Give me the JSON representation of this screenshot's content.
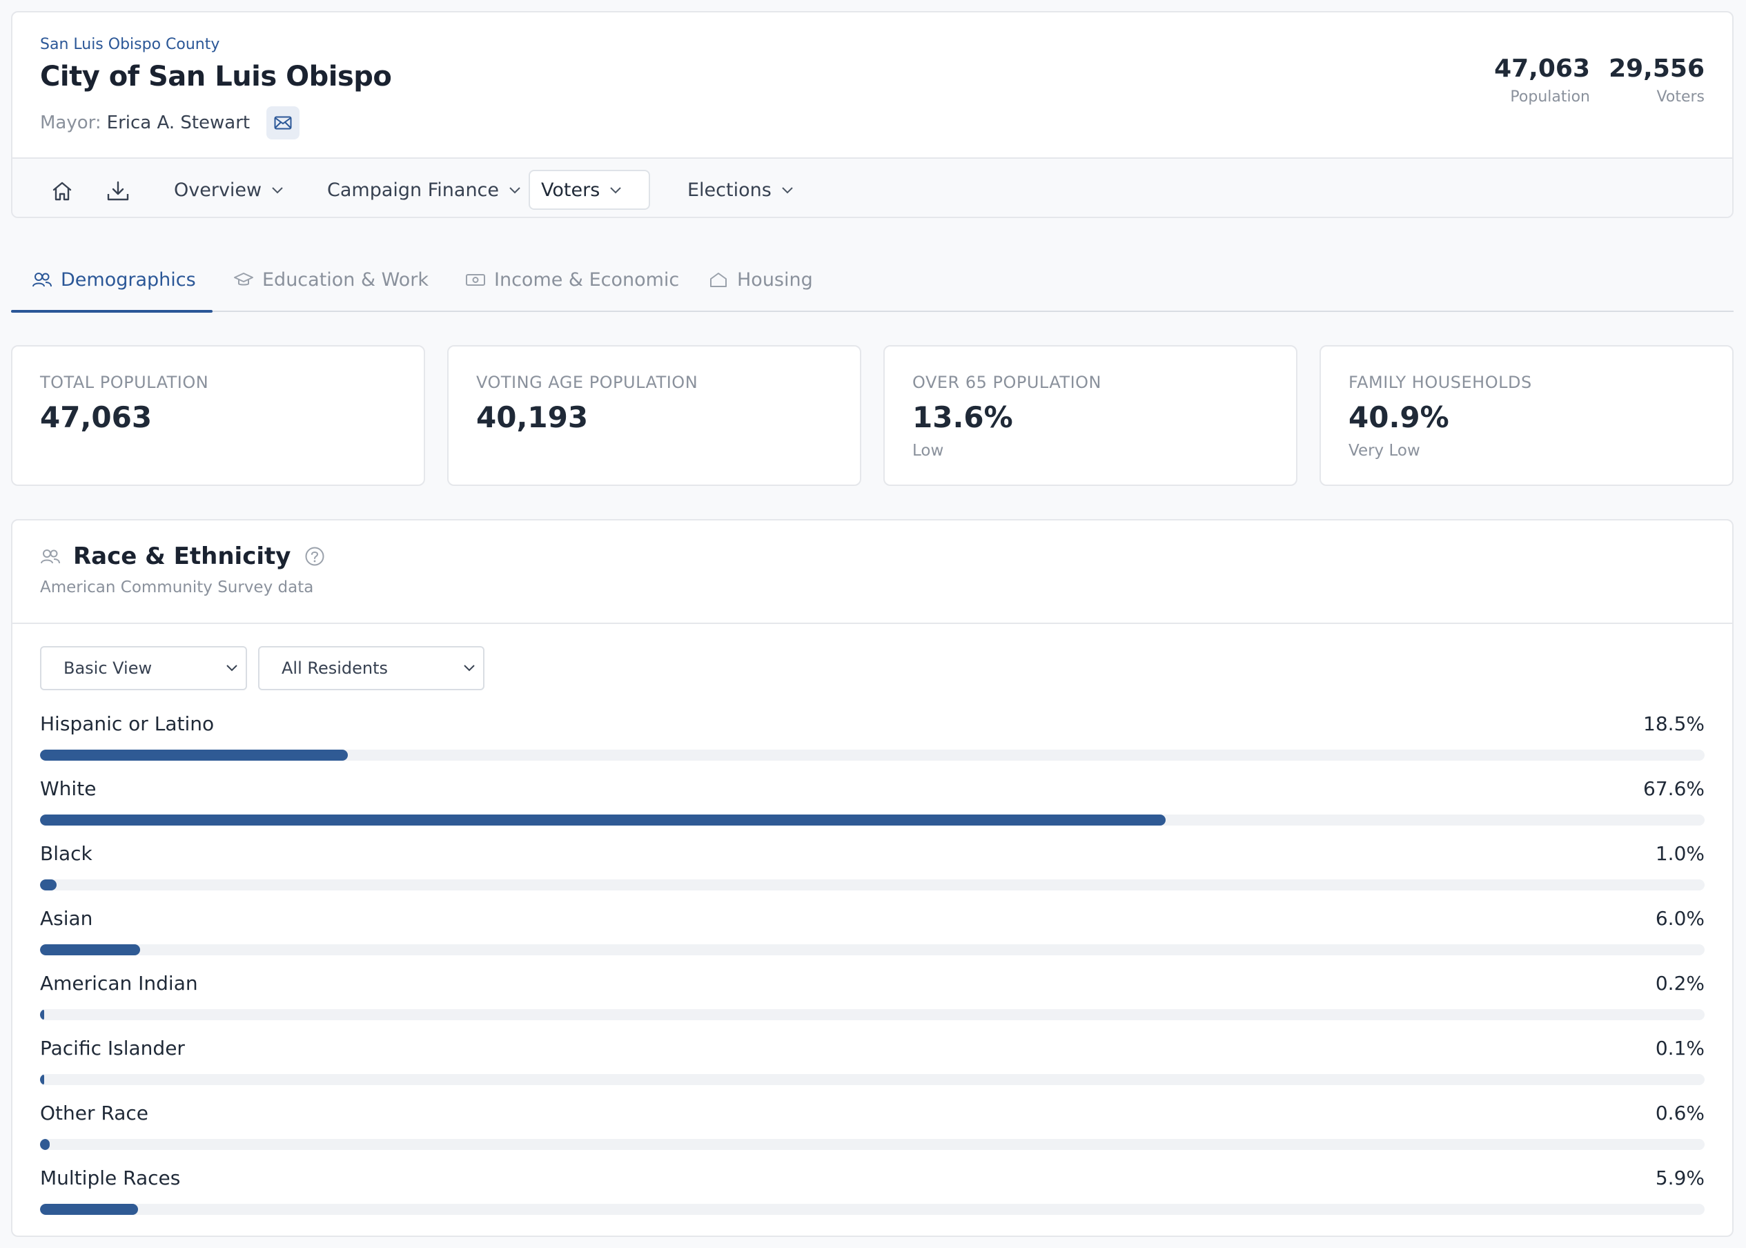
{
  "header": {
    "county": "San Luis Obispo County",
    "city": "City of San Luis Obispo",
    "mayor_label": "Mayor:",
    "mayor_name": "Erica A. Stewart",
    "stats": [
      {
        "value": "47,063",
        "label": "Population"
      },
      {
        "value": "29,556",
        "label": "Voters"
      }
    ]
  },
  "nav": {
    "items": [
      {
        "label": "Overview"
      },
      {
        "label": "Campaign Finance"
      },
      {
        "label": "Voters",
        "active": true
      },
      {
        "label": "Elections"
      }
    ]
  },
  "tabs": [
    {
      "label": "Demographics",
      "active": true
    },
    {
      "label": "Education & Work"
    },
    {
      "label": "Income & Economic"
    },
    {
      "label": "Housing"
    }
  ],
  "kpis": [
    {
      "label": "TOTAL POPULATION",
      "value": "47,063",
      "note": ""
    },
    {
      "label": "VOTING AGE POPULATION",
      "value": "40,193",
      "note": ""
    },
    {
      "label": "OVER 65 POPULATION",
      "value": "13.6%",
      "note": "Low"
    },
    {
      "label": "FAMILY HOUSEHOLDS",
      "value": "40.9%",
      "note": "Very Low"
    }
  ],
  "race": {
    "title": "Race & Ethnicity",
    "subtitle": "American Community Survey data",
    "view_select": "Basic View",
    "residents_select": "All Residents",
    "rows": [
      {
        "name": "Hispanic or Latino",
        "pct_label": "18.5%",
        "pct": 18.5
      },
      {
        "name": "White",
        "pct_label": "67.6%",
        "pct": 67.6
      },
      {
        "name": "Black",
        "pct_label": "1.0%",
        "pct": 1.0
      },
      {
        "name": "Asian",
        "pct_label": "6.0%",
        "pct": 6.0
      },
      {
        "name": "American Indian",
        "pct_label": "0.2%",
        "pct": 0.2
      },
      {
        "name": "Pacific Islander",
        "pct_label": "0.1%",
        "pct": 0.1
      },
      {
        "name": "Other Race",
        "pct_label": "0.6%",
        "pct": 0.6
      },
      {
        "name": "Multiple Races",
        "pct_label": "5.9%",
        "pct": 5.9
      }
    ]
  },
  "colors": {
    "accent": "#2b5797",
    "bar": "#2f5a94",
    "track": "#f0f2f5"
  }
}
